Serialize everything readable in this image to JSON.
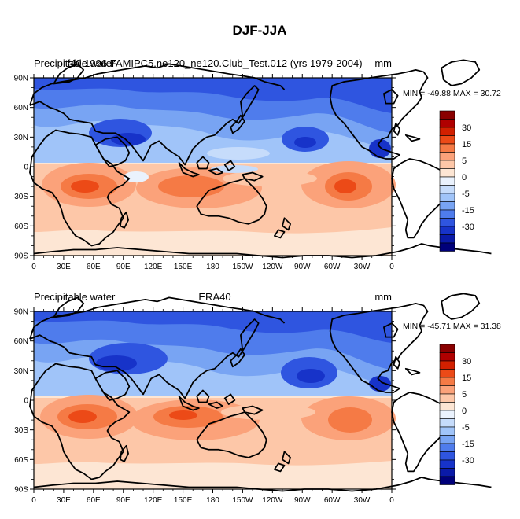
{
  "figure": {
    "title": "DJF-JJA"
  },
  "chart_data": [
    {
      "type": "heatmap",
      "variable": "Precipitable water",
      "case": "f40.1996.FAMIPC5.ne120_ne120.Club_Test.012 (yrs 1979-2004)",
      "units": "mm",
      "stats": "MIN = -49.88 MAX =  30.72",
      "min": -49.88,
      "max": 30.72,
      "xlim": [
        0,
        360
      ],
      "ylim": [
        -90,
        90
      ],
      "x_ticks": [
        "0",
        "30E",
        "60E",
        "90E",
        "120E",
        "150E",
        "180",
        "150W",
        "120W",
        "90W",
        "60W",
        "30W",
        "0"
      ],
      "y_ticks": [
        "90N",
        "60N",
        "30N",
        "0",
        "30S",
        "60S",
        "90S"
      ],
      "colorbar_labels": [
        "30",
        "15",
        "5",
        "0",
        "-5",
        "-15",
        "-30"
      ]
    },
    {
      "type": "heatmap",
      "variable": "Precipitable water",
      "case": "ERA40",
      "units": "mm",
      "stats": "MIN = -45.71 MAX =  31.38",
      "min": -45.71,
      "max": 31.38,
      "xlim": [
        0,
        360
      ],
      "ylim": [
        -90,
        90
      ],
      "x_ticks": [
        "0",
        "30E",
        "60E",
        "90E",
        "120E",
        "150E",
        "180",
        "150W",
        "120W",
        "90W",
        "60W",
        "30W",
        "0"
      ],
      "y_ticks": [
        "90N",
        "60N",
        "30N",
        "0",
        "30S",
        "60S",
        "90S"
      ],
      "colorbar_labels": [
        "30",
        "15",
        "5",
        "0",
        "-5",
        "-15",
        "-30"
      ]
    }
  ],
  "colors": {
    "levels": [
      "#8a0000",
      "#b00000",
      "#d22000",
      "#ec4a17",
      "#f57a45",
      "#fba27a",
      "#fdc7a8",
      "#fde6d4",
      "#eaf2fd",
      "#c6dcfb",
      "#a0c4f9",
      "#78a4f3",
      "#4f7cec",
      "#2f55e0",
      "#1733c9",
      "#0a1aa8",
      "#00007a"
    ],
    "land_outline": "#000000"
  }
}
